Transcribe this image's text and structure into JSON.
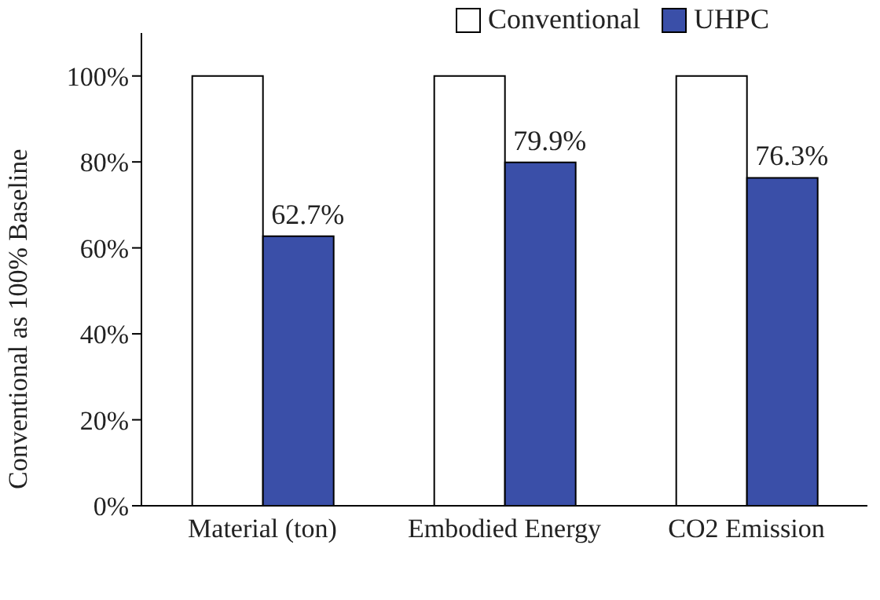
{
  "chart_data": {
    "type": "bar",
    "ylabel": "Conventional as 100% Baseline",
    "categories": [
      "Material (ton)",
      "Embodied Energy",
      "CO2 Emission"
    ],
    "series": [
      {
        "name": "Conventional",
        "color": "#ffffff",
        "values": [
          100,
          100,
          100
        ]
      },
      {
        "name": "UHPC",
        "color": "#3a4fa8",
        "values": [
          62.7,
          79.9,
          76.3
        ],
        "value_labels": [
          "62.7%",
          "79.9%",
          "76.3%"
        ]
      }
    ],
    "ylim": [
      0,
      110
    ],
    "yticks": [
      {
        "value": 0,
        "label": "0%"
      },
      {
        "value": 20,
        "label": "20%"
      },
      {
        "value": 40,
        "label": "40%"
      },
      {
        "value": 60,
        "label": "60%"
      },
      {
        "value": 80,
        "label": "80%"
      },
      {
        "value": 100,
        "label": "100%"
      }
    ],
    "legend": "top",
    "grid": false
  }
}
